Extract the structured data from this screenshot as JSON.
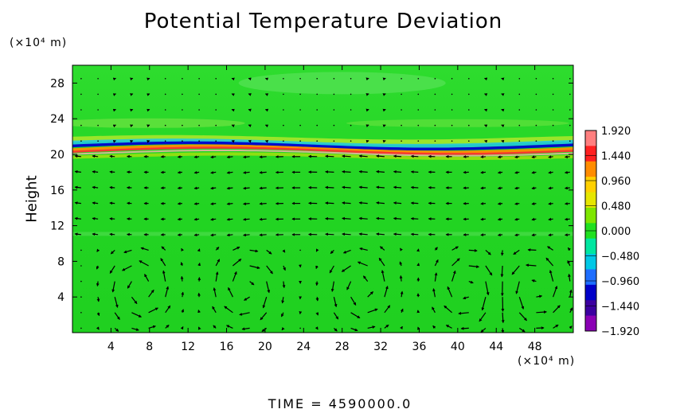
{
  "title": "Potential Temperature Deviation",
  "y_unit": "(×10⁴ m)",
  "x_unit": "(×10⁴ m)",
  "ylabel": "Height",
  "time_text": "TIME  =  4590000.0",
  "chart_data": {
    "type": "heatmap",
    "title": "Potential Temperature Deviation",
    "xlabel": "",
    "ylabel": "Height",
    "x_unit": "×10⁴ m",
    "y_unit": "×10⁴ m",
    "xlim": [
      0,
      52
    ],
    "ylim": [
      0,
      30
    ],
    "x_ticks": [
      4,
      8,
      12,
      16,
      20,
      24,
      28,
      32,
      36,
      40,
      44,
      48
    ],
    "x_tick_labels": [
      "4",
      "8",
      "12",
      "16",
      "20",
      "24",
      "28",
      "32",
      "36",
      "40",
      "44",
      "48"
    ],
    "y_ticks": [
      4,
      8,
      12,
      16,
      20,
      24,
      28
    ],
    "y_tick_labels": [
      "4",
      "8",
      "12",
      "16",
      "20",
      "24",
      "28"
    ],
    "colorbar": {
      "vmin": -1.92,
      "vmax": 1.92,
      "labels": [
        "1.920",
        "1.440",
        "0.960",
        "0.480",
        "0.000",
        "−0.480",
        "−0.960",
        "−1.440",
        "−1.920"
      ],
      "values": [
        1.92,
        1.44,
        0.96,
        0.48,
        0.0,
        -0.48,
        -0.96,
        -1.44,
        -1.92
      ],
      "colors": [
        "#ff7f7f",
        "#ff2020",
        "#ff8c00",
        "#ffd000",
        "#e6e600",
        "#7ee600",
        "#20e020",
        "#00e6a0",
        "#00c8e6",
        "#1e6eff",
        "#0000c8",
        "#3c00a0",
        "#8a00b4"
      ]
    },
    "background_value": 0.0,
    "features": [
      {
        "name": "upper inversion layer",
        "y_center": 20.7,
        "value_range": [
          -1.92,
          1.92
        ]
      }
    ],
    "vector_field": {
      "description_of_quantity": "wind vectors",
      "vortex_centers_x": [
        7,
        18,
        30,
        41,
        48
      ],
      "vortex_y_range": [
        0,
        11
      ]
    }
  }
}
